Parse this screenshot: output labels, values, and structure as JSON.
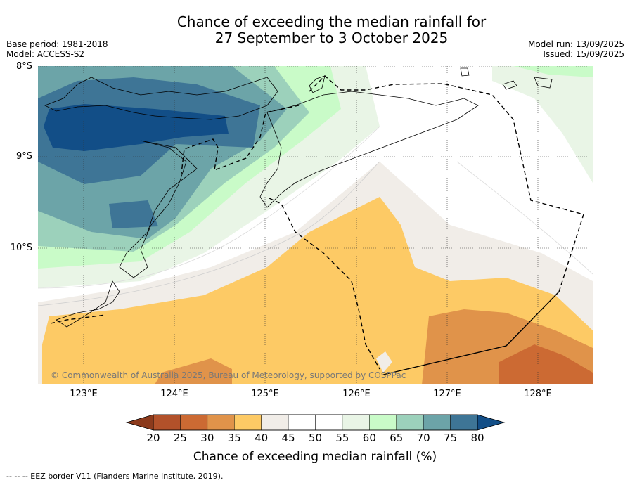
{
  "title": {
    "line1": "Chance of exceeding the median rainfall for",
    "line2": "27 September to 3 October 2025"
  },
  "meta_left": {
    "base_period": "Base period: 1981-2018",
    "model": "Model: ACCESS-S2"
  },
  "meta_right": {
    "model_run": "Model run: 13/09/2025",
    "issued": "Issued: 15/09/2025"
  },
  "map": {
    "lat_labels": [
      "8°S",
      "9°S",
      "10°S"
    ],
    "lon_labels": [
      "123°E",
      "124°E",
      "125°E",
      "126°E",
      "127°E",
      "128°E"
    ],
    "lat_range": [
      -11.5,
      -8.0
    ],
    "lon_range": [
      122.5,
      128.6
    ],
    "copyright": "© Commonwealth of Australia 2025, Bureau of Meteorology, supported by COSPPac"
  },
  "colorbar": {
    "ticks": [
      "20",
      "25",
      "30",
      "35",
      "40",
      "45",
      "50",
      "55",
      "60",
      "65",
      "70",
      "75",
      "80"
    ],
    "colors": [
      "#8c3a1c",
      "#b2512a",
      "#cc6a33",
      "#e0934a",
      "#fdca65",
      "#f1ede8",
      "#ffffff",
      "#ffffff",
      "#e9f5e6",
      "#c9fbc8",
      "#9cd1bb",
      "#6ca4a8",
      "#3e7596",
      "#124e87"
    ],
    "title": "Chance of exceeding median rainfall (%)"
  },
  "footer": "--  --  -- EEZ border V11 (Flanders Marine Institute, 2019)."
}
